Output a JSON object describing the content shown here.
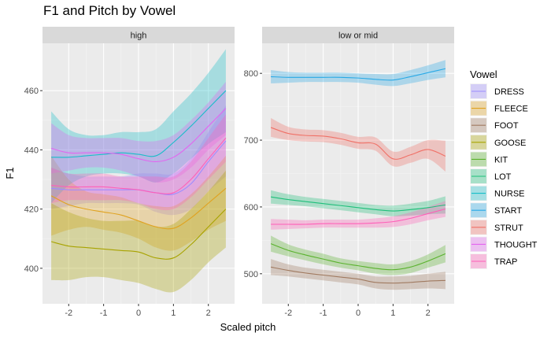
{
  "chart_data": {
    "type": "line",
    "title": "F1 and Pitch by Vowel",
    "xlabel": "Scaled pitch",
    "ylabel": "F1",
    "legend_title": "Vowel",
    "legend_position": "right",
    "grid": true,
    "x_ticks": [
      -2,
      -1,
      0,
      1,
      2
    ],
    "x_tick_labels": [
      "-2",
      "-1",
      "0",
      "1",
      "2"
    ],
    "x": [
      -2.5,
      -2,
      -1.5,
      -1,
      -0.5,
      0,
      0.5,
      1,
      1.5,
      2,
      2.5
    ],
    "colors": {
      "DRESS": "#F8766D",
      "FLEECE": "#DB8E00",
      "FOOT": "#AEA200",
      "GOOSE": "#64B200",
      "KIT": "#00BD5C",
      "LOT": "#00C1A7",
      "NURSE": "#00BADE",
      "START": "#00A6FF",
      "STRUT": "#B385FF",
      "THOUGHT": "#EF67EB",
      "TRAP": "#FF63B6"
    },
    "legend_entries": [
      "DRESS",
      "FLEECE",
      "FOOT",
      "GOOSE",
      "KIT",
      "LOT",
      "NURSE",
      "START",
      "STRUT",
      "THOUGHT",
      "TRAP"
    ],
    "legend_colors": [
      "#9D8CFF",
      "#E0A21F",
      "#A07A60",
      "#A8A300",
      "#5AB22E",
      "#1EBF7A",
      "#17BEC8",
      "#28A9E6",
      "#F07167",
      "#E365F0",
      "#FF5FB8"
    ],
    "panels": [
      {
        "label": "high",
        "ylim": [
          388,
          476
        ],
        "y_ticks": [
          400,
          420,
          440,
          460
        ],
        "y_tick_labels": [
          "400",
          "420",
          "440",
          "460"
        ],
        "series": [
          {
            "name": "DRESS",
            "color": "#9D8CFF",
            "values": [
              427,
              426.5,
              426.5,
              426.5,
              426.5,
              426.5,
              425.5,
              425,
              428.5,
              436,
              443
            ],
            "lower": [
              420,
              421,
              422,
              422,
              422,
              421.5,
              419,
              418,
              420,
              426,
              431
            ],
            "upper": [
              434,
              432,
              431,
              431,
              431,
              432,
              432,
              432,
              437,
              446,
              455
            ]
          },
          {
            "name": "FLEECE",
            "color": "#E0A21F",
            "values": [
              424.5,
              421.5,
              420,
              419,
              418,
              416,
              414,
              413.5,
              417,
              422,
              427
            ],
            "lower": [
              411,
              413,
              414,
              413,
              412,
              410,
              407,
              406,
              409,
              413,
              416
            ],
            "upper": [
              438,
              430,
              426,
              425,
              424,
              422,
              421,
              421,
              425,
              431,
              438
            ]
          },
          {
            "name": "GOOSE",
            "color": "#A8A300",
            "values": [
              409,
              407.5,
              407,
              406.5,
              406,
              405.5,
              403.5,
              403.5,
              408,
              414,
              420
            ],
            "lower": [
              396,
              396,
              397,
              397,
              396,
              395,
              393,
              392,
              396,
              402,
              407
            ],
            "upper": [
              422,
              419,
              417,
              416,
              416,
              416,
              414,
              415,
              420,
              426,
              433
            ]
          },
          {
            "name": "NURSE",
            "color": "#17BEC8",
            "values": [
              437.5,
              437.5,
              438,
              438.5,
              439,
              438.5,
              438,
              442.5,
              448,
              454,
              460
            ],
            "lower": [
              422,
              428,
              431,
              432,
              432,
              431,
              429,
              432,
              437,
              442,
              446
            ],
            "upper": [
              453,
              447,
              445,
              445,
              446,
              446,
              447,
              453,
              459,
              466,
              474
            ]
          },
          {
            "name": "THOUGHT",
            "color": "#E365F0",
            "values": [
              440.5,
              439,
              439,
              439,
              438.5,
              437,
              436,
              437.5,
              442,
              448,
              454
            ],
            "lower": [
              432,
              433,
              434,
              434,
              433,
              431,
              429,
              430,
              434,
              440,
              445
            ],
            "upper": [
              449,
              445,
              444,
              444,
              444,
              443,
              443,
              445,
              450,
              456,
              463
            ]
          },
          {
            "name": "TRAP",
            "color": "#FF5FB8",
            "values": [
              428,
              427.5,
              427.5,
              427.5,
              427,
              426.5,
              425.5,
              425.5,
              430,
              437,
              444
            ],
            "lower": [
              422,
              423,
              423,
              423,
              423,
              422,
              420,
              420,
              424,
              430,
              436
            ],
            "upper": [
              434,
              432,
              432,
              432,
              431,
              431,
              431,
              431,
              436,
              444,
              452
            ]
          }
        ]
      },
      {
        "label": "low or mid",
        "ylim": [
          455,
          845
        ],
        "y_ticks": [
          500,
          600,
          700,
          800
        ],
        "y_tick_labels": [
          "500",
          "600",
          "700",
          "800"
        ],
        "series": [
          {
            "name": "START",
            "color": "#28A9E6",
            "values": [
              795,
              794,
              794,
              794,
              794,
              793,
              791,
              790,
              795,
              801,
              807
            ],
            "lower": [
              785,
              786,
              787,
              787,
              787,
              786,
              783,
              781,
              785,
              790,
              794
            ],
            "upper": [
              805,
              802,
              801,
              801,
              801,
              800,
              799,
              799,
              805,
              812,
              820
            ]
          },
          {
            "name": "STRUT",
            "color": "#F07167",
            "values": [
              719,
              710,
              707,
              706,
              702,
              696,
              694,
              672,
              678,
              686,
              676
            ],
            "lower": [
              705,
              700,
              698,
              697,
              693,
              687,
              684,
              661,
              666,
              672,
              653
            ],
            "upper": [
              733,
              720,
              716,
              715,
              711,
              705,
              704,
              683,
              690,
              700,
              699
            ]
          },
          {
            "name": "LOT",
            "color": "#1EBF7A",
            "values": [
              615,
              611,
              608,
              605,
              602,
              599,
              596,
              594,
              596,
              599,
              603
            ],
            "lower": [
              605,
              603,
              601,
              598,
              595,
              592,
              589,
              586,
              587,
              589,
              590
            ],
            "upper": [
              625,
              619,
              615,
              612,
              609,
              606,
              603,
              602,
              605,
              609,
              616
            ]
          },
          {
            "name": "TRAP",
            "color": "#FF5FB8",
            "values": [
              574,
              574,
              574,
              575,
              575,
              575,
              576,
              578,
              583,
              590,
              597
            ],
            "lower": [
              566,
              567,
              568,
              569,
              569,
              569,
              569,
              570,
              574,
              580,
              585
            ],
            "upper": [
              582,
              581,
              580,
              581,
              581,
              581,
              583,
              586,
              592,
              600,
              609
            ]
          },
          {
            "name": "KIT",
            "color": "#5AB22E",
            "values": [
              545,
              535,
              528,
              522,
              516,
              512,
              508,
              506,
              510,
              519,
              530
            ],
            "lower": [
              533,
              526,
              520,
              514,
              509,
              505,
              500,
              498,
              501,
              509,
              517
            ],
            "upper": [
              557,
              544,
              536,
              530,
              523,
              519,
              516,
              514,
              519,
              529,
              543
            ]
          },
          {
            "name": "FOOT",
            "color": "#A07A60",
            "values": [
              510,
              505,
              501,
              498,
              495,
              492,
              487,
              486,
              487,
              489,
              490
            ],
            "lower": [
              498,
              496,
              493,
              490,
              487,
              484,
              478,
              476,
              477,
              478,
              477
            ],
            "upper": [
              522,
              514,
              509,
              506,
              503,
              500,
              496,
              496,
              497,
              500,
              503
            ]
          }
        ]
      }
    ]
  }
}
